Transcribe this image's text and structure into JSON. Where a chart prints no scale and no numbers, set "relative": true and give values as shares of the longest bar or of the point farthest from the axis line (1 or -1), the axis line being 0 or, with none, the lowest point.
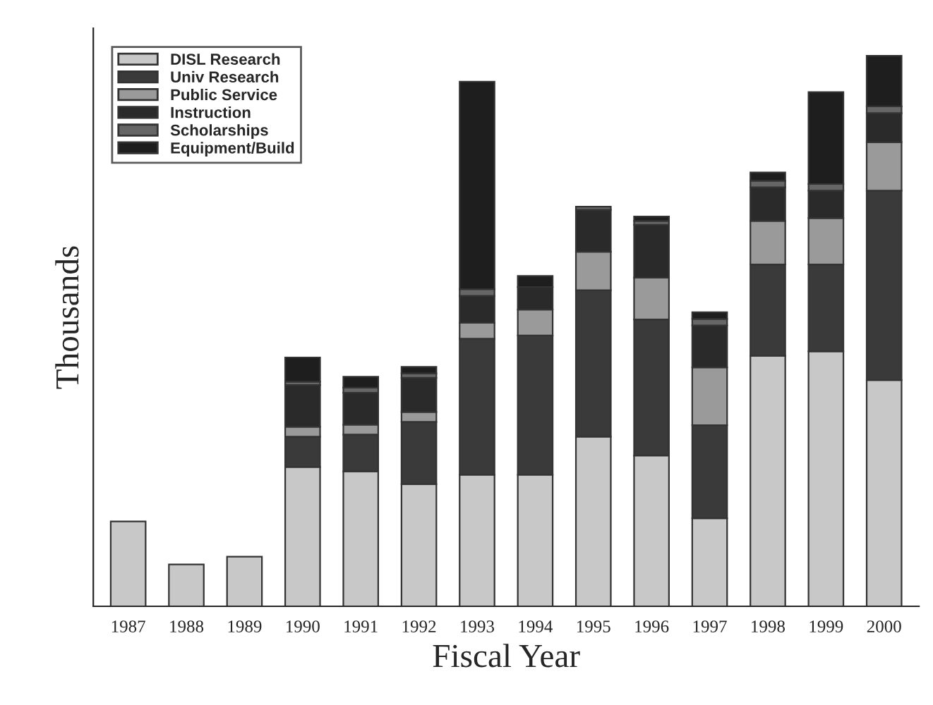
{
  "chart_data": {
    "type": "bar",
    "stacked": true,
    "relative": true,
    "xlabel": "Fiscal Year",
    "ylabel": "Thousands",
    "legend": "top left",
    "grid": false,
    "categories": [
      "1987",
      "1988",
      "1989",
      "1990",
      "1991",
      "1992",
      "1993",
      "1994",
      "1995",
      "1996",
      "1997",
      "1998",
      "1999",
      "2000"
    ],
    "series": [
      {
        "name": "DISL Research",
        "color": "#c8c8c8",
        "values": [
          0.154,
          0.076,
          0.09,
          0.253,
          0.245,
          0.222,
          0.239,
          0.239,
          0.308,
          0.274,
          0.16,
          0.455,
          0.463,
          0.411
        ]
      },
      {
        "name": "Univ Research",
        "color": "#3a3a3a",
        "values": [
          0,
          0,
          0,
          0.055,
          0.067,
          0.113,
          0.247,
          0.253,
          0.266,
          0.247,
          0.169,
          0.166,
          0.158,
          0.344
        ]
      },
      {
        "name": "Public Service",
        "color": "#9a9a9a",
        "values": [
          0,
          0,
          0,
          0.018,
          0.018,
          0.018,
          0.029,
          0.047,
          0.07,
          0.076,
          0.105,
          0.079,
          0.084,
          0.088
        ]
      },
      {
        "name": "Instruction",
        "color": "#2a2a2a",
        "values": [
          0,
          0,
          0,
          0.076,
          0.058,
          0.062,
          0.049,
          0.041,
          0.076,
          0.096,
          0.076,
          0.061,
          0.05,
          0.053
        ]
      },
      {
        "name": "Scholarships",
        "color": "#666666",
        "values": [
          0,
          0,
          0,
          0.006,
          0.009,
          0.008,
          0.012,
          0,
          0.006,
          0.007,
          0.012,
          0.012,
          0.012,
          0.012
        ]
      },
      {
        "name": "Equipment/Build",
        "color": "#1e1e1e",
        "values": [
          0,
          0,
          0,
          0.044,
          0.02,
          0.012,
          0.377,
          0.02,
          0,
          0.008,
          0.012,
          0.015,
          0.167,
          0.092
        ]
      }
    ]
  }
}
